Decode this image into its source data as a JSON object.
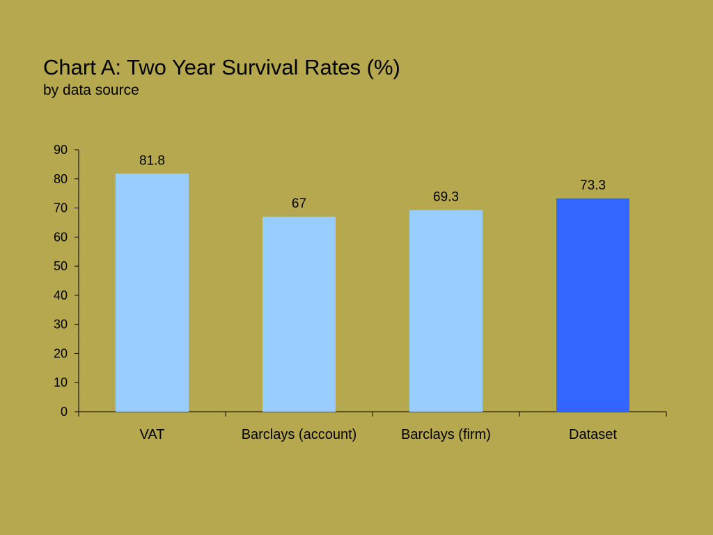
{
  "chart_data": {
    "type": "bar",
    "title": "Chart A: Two Year Survival Rates (%)",
    "subtitle": "by data source",
    "xlabel": "",
    "ylabel": "",
    "categories": [
      "VAT",
      "Barclays (account)",
      "Barclays (firm)",
      "Dataset"
    ],
    "values": [
      81.8,
      67,
      69.3,
      73.3
    ],
    "value_labels": [
      "81.8",
      "67",
      "69.3",
      "73.3"
    ],
    "ylim": [
      0,
      90
    ],
    "yticks": [
      0,
      10,
      20,
      30,
      40,
      50,
      60,
      70,
      80,
      90
    ],
    "grid": false,
    "legend": "none",
    "colors": [
      "#99ccff",
      "#99ccff",
      "#99ccff",
      "#3366ff"
    ]
  },
  "colors": {
    "background": "#b5a84f",
    "bar": "#99ccff",
    "highlight_bar": "#3366ff",
    "axis": "#000000"
  }
}
